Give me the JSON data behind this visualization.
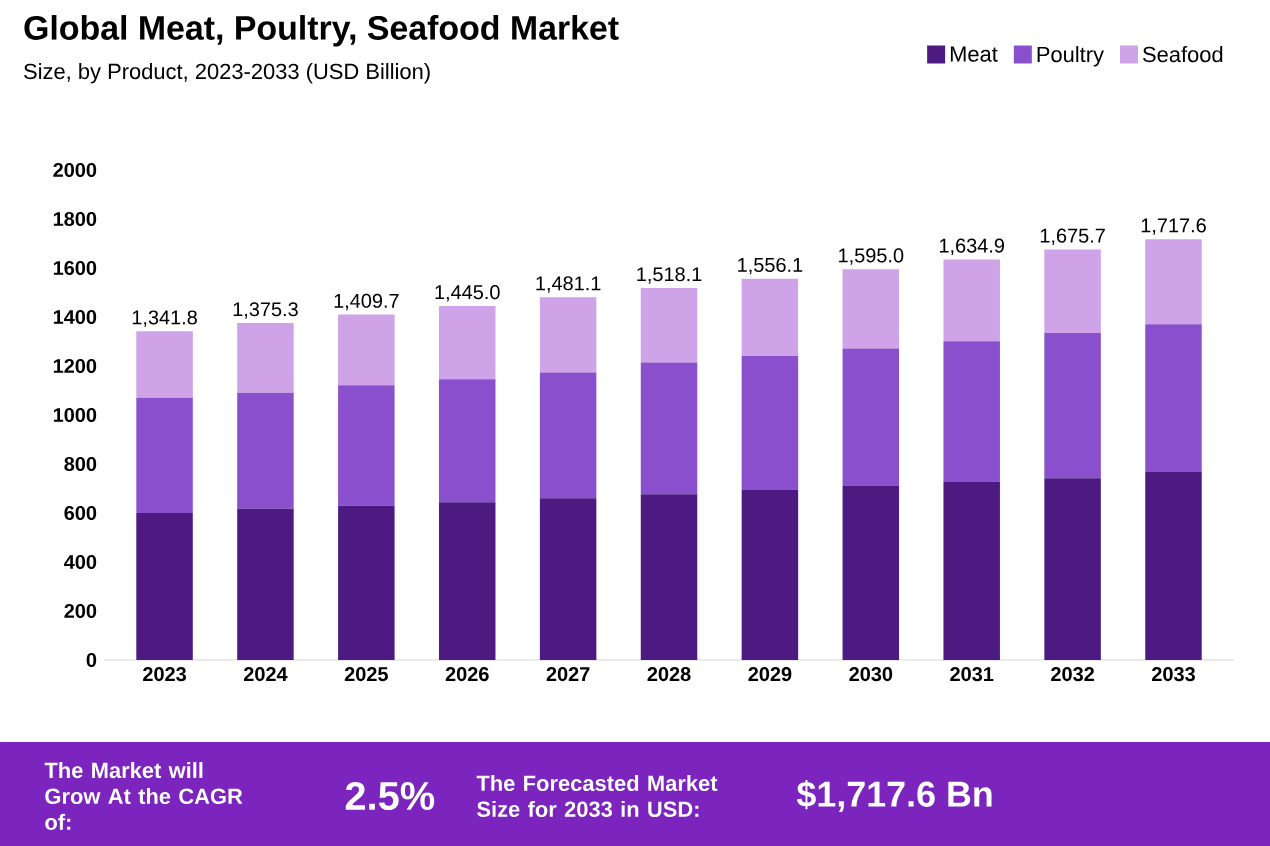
{
  "chart_data": {
    "type": "bar",
    "stacked": true,
    "title": "Global Meat, Poultry, Seafood Market",
    "subtitle": "Size, by Product, 2023-2033 (USD Billion)",
    "categories": [
      "2023",
      "2024",
      "2025",
      "2026",
      "2027",
      "2028",
      "2029",
      "2030",
      "2031",
      "2032",
      "2033"
    ],
    "series": [
      {
        "name": "Meat",
        "color": "#4d1a82",
        "values": [
          600,
          617,
          630,
          644,
          660,
          677,
          696,
          712,
          729,
          742,
          767
        ]
      },
      {
        "name": "Poultry",
        "color": "#8a4fcc",
        "values": [
          470,
          474,
          491,
          502,
          513,
          537,
          545,
          559,
          572,
          593,
          603
        ]
      },
      {
        "name": "Seafood",
        "color": "#cfa3e8",
        "values": [
          271.8,
          284.3,
          288.7,
          299.0,
          308.1,
          304.1,
          315.1,
          324.0,
          333.9,
          340.7,
          347.6
        ]
      }
    ],
    "totals": [
      "1,341.8",
      "1,375.3",
      "1,409.7",
      "1,445.0",
      "1,481.1",
      "1,518.1",
      "1,556.1",
      "1,595.0",
      "1,634.9",
      "1,675.7",
      "1,717.6"
    ],
    "ylim": [
      0,
      2000
    ],
    "yticks": [
      0,
      200,
      400,
      600,
      800,
      1000,
      1200,
      1400,
      1600,
      1800,
      2000
    ],
    "grid": false,
    "legend": "top right",
    "annotations": [
      "The Market will Grow At the CAGR of:",
      "2.5%",
      "The Forecasted Market Size for 2033 in USD:",
      "$1,717.6 Bn"
    ]
  }
}
